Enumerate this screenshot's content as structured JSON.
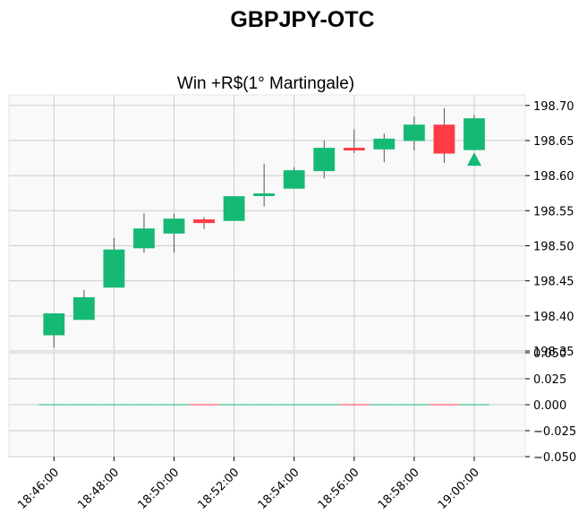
{
  "chart_data": {
    "type": "candlestick",
    "suptitle": "GBPJPY-OTC",
    "title": "Win +R$(1° Martingale)",
    "colors": {
      "up": "#16b974",
      "down": "#ff3c46",
      "wick": "#555555",
      "volume_line_up": "#16b974",
      "volume_line_down": "#ff3c46",
      "signal": "#16b974"
    },
    "price_axis": {
      "ylim": [
        198.35,
        198.715
      ],
      "ticks": [
        "198.35",
        "198.40",
        "198.45",
        "198.50",
        "198.55",
        "198.60",
        "198.65",
        "198.70"
      ]
    },
    "volume_axis": {
      "ylim": [
        -0.05,
        0.05
      ],
      "ticks": [
        "−0.050",
        "−0.025",
        "0.000",
        "0.025",
        "0.050"
      ]
    },
    "x_axis": {
      "labels": [
        "18:46:00",
        "18:48:00",
        "18:50:00",
        "18:52:00",
        "18:54:00",
        "18:56:00",
        "18:58:00",
        "19:00:00"
      ],
      "label_minutes": [
        0,
        2,
        4,
        6,
        8,
        10,
        12,
        14
      ],
      "xlim_minutes": [
        -1.5,
        15.7
      ]
    },
    "candles": [
      {
        "t": 0,
        "time": "18:46:00",
        "open": 198.373,
        "high": 198.403,
        "low": 198.355,
        "close": 198.403
      },
      {
        "t": 1,
        "time": "18:47:00",
        "open": 198.395,
        "high": 198.437,
        "low": 198.395,
        "close": 198.426
      },
      {
        "t": 2,
        "time": "18:48:00",
        "open": 198.441,
        "high": 198.511,
        "low": 198.441,
        "close": 198.494
      },
      {
        "t": 3,
        "time": "18:49:00",
        "open": 198.497,
        "high": 198.546,
        "low": 198.49,
        "close": 198.524
      },
      {
        "t": 4,
        "time": "18:50:00",
        "open": 198.518,
        "high": 198.546,
        "low": 198.49,
        "close": 198.538
      },
      {
        "t": 5,
        "time": "18:51:00",
        "open": 198.537,
        "high": 198.541,
        "low": 198.524,
        "close": 198.533
      },
      {
        "t": 6,
        "time": "18:52:00",
        "open": 198.536,
        "high": 198.57,
        "low": 198.536,
        "close": 198.57
      },
      {
        "t": 7,
        "time": "18:53:00",
        "open": 198.572,
        "high": 198.617,
        "low": 198.556,
        "close": 198.574
      },
      {
        "t": 8,
        "time": "18:54:00",
        "open": 198.582,
        "high": 198.612,
        "low": 198.582,
        "close": 198.607
      },
      {
        "t": 9,
        "time": "18:55:00",
        "open": 198.607,
        "high": 198.65,
        "low": 198.596,
        "close": 198.639
      },
      {
        "t": 10,
        "time": "18:56:00",
        "open": 198.639,
        "high": 198.666,
        "low": 198.632,
        "close": 198.638
      },
      {
        "t": 11,
        "time": "18:57:00",
        "open": 198.638,
        "high": 198.66,
        "low": 198.619,
        "close": 198.652
      },
      {
        "t": 12,
        "time": "18:58:00",
        "open": 198.65,
        "high": 198.684,
        "low": 198.636,
        "close": 198.672
      },
      {
        "t": 13,
        "time": "18:59:00",
        "open": 198.672,
        "high": 198.696,
        "low": 198.618,
        "close": 198.632
      },
      {
        "t": 14,
        "time": "19:00:00",
        "open": 198.637,
        "high": 198.686,
        "low": 198.637,
        "close": 198.681
      }
    ],
    "signal": {
      "t": 14,
      "direction": "up",
      "price": 198.623
    },
    "volume": [
      0,
      0,
      0,
      0,
      0,
      0,
      0,
      0,
      0,
      0,
      0,
      0,
      0,
      0,
      0
    ],
    "grid": true
  }
}
